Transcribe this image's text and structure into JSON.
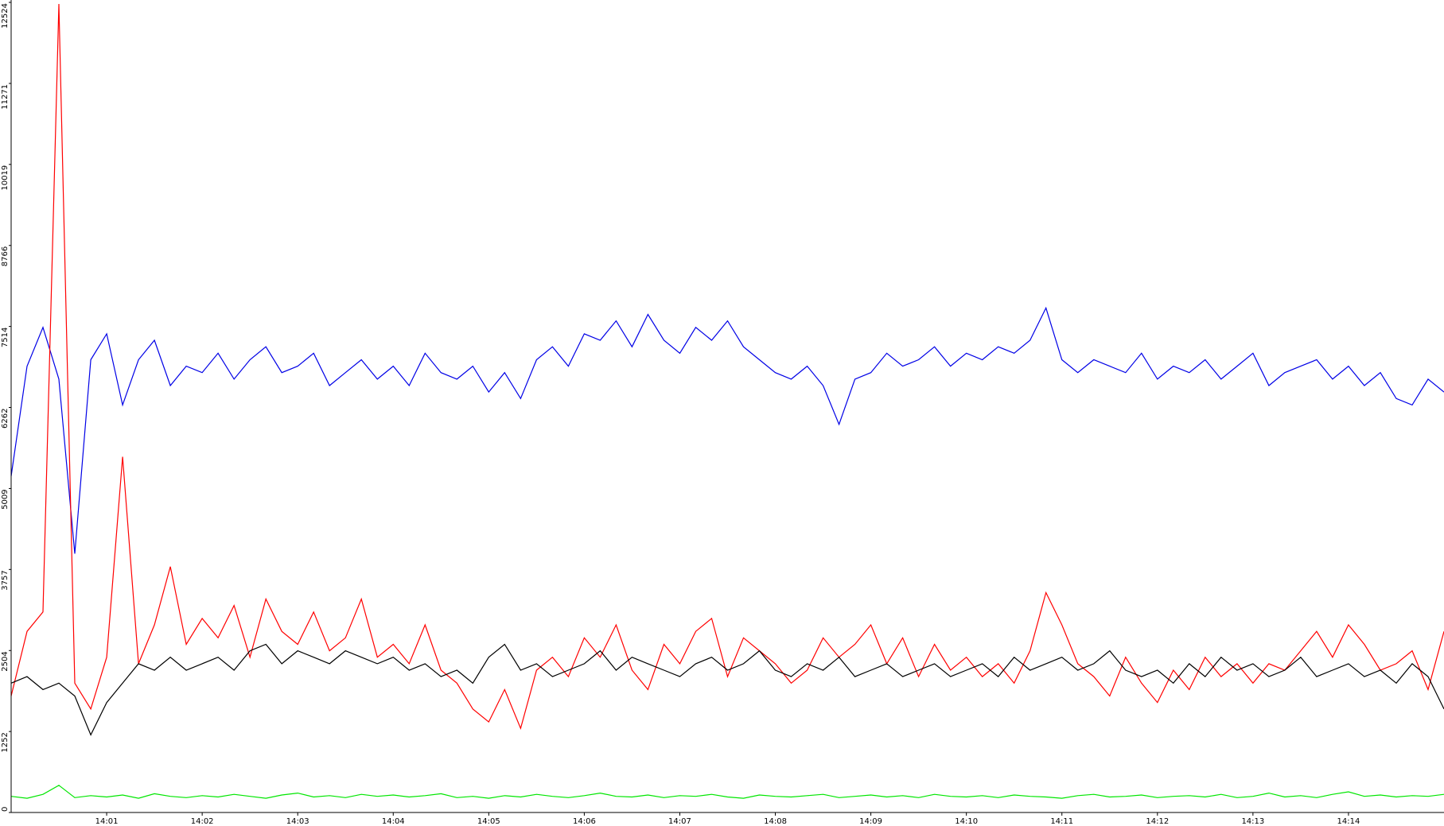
{
  "chart_data": {
    "type": "line",
    "x": [
      "14:00:00",
      "14:00:10",
      "14:00:20",
      "14:00:30",
      "14:00:40",
      "14:00:50",
      "14:01:00",
      "14:01:10",
      "14:01:20",
      "14:01:30",
      "14:01:40",
      "14:01:50",
      "14:02:00",
      "14:02:10",
      "14:02:20",
      "14:02:30",
      "14:02:40",
      "14:02:50",
      "14:03:00",
      "14:03:10",
      "14:03:20",
      "14:03:30",
      "14:03:40",
      "14:03:50",
      "14:04:00",
      "14:04:10",
      "14:04:20",
      "14:04:30",
      "14:04:40",
      "14:04:50",
      "14:05:00",
      "14:05:10",
      "14:05:20",
      "14:05:30",
      "14:05:40",
      "14:05:50",
      "14:06:00",
      "14:06:10",
      "14:06:20",
      "14:06:30",
      "14:06:40",
      "14:06:50",
      "14:07:00",
      "14:07:10",
      "14:07:20",
      "14:07:30",
      "14:07:40",
      "14:07:50",
      "14:08:00",
      "14:08:10",
      "14:08:20",
      "14:08:30",
      "14:08:40",
      "14:08:50",
      "14:09:00",
      "14:09:10",
      "14:09:20",
      "14:09:30",
      "14:09:40",
      "14:09:50",
      "14:10:00",
      "14:10:10",
      "14:10:20",
      "14:10:30",
      "14:10:40",
      "14:10:50",
      "14:11:00",
      "14:11:10",
      "14:11:20",
      "14:11:30",
      "14:11:40",
      "14:11:50",
      "14:12:00",
      "14:12:10",
      "14:12:20",
      "14:12:30",
      "14:12:40",
      "14:12:50",
      "14:13:00",
      "14:13:10",
      "14:13:20",
      "14:13:30",
      "14:13:40",
      "14:13:50",
      "14:14:00",
      "14:14:10",
      "14:14:20",
      "14:14:30",
      "14:14:40",
      "14:14:50",
      "14:15:00"
    ],
    "series": [
      {
        "color": "#0000e6",
        "values": [
          5200,
          6900,
          7500,
          6700,
          4000,
          7000,
          7400,
          6300,
          7000,
          7300,
          6600,
          6900,
          6800,
          7100,
          6700,
          7000,
          7200,
          6800,
          6900,
          7100,
          6600,
          6800,
          7000,
          6700,
          6900,
          6600,
          7100,
          6800,
          6700,
          6900,
          6500,
          6800,
          6400,
          7000,
          7200,
          6900,
          7400,
          7300,
          7600,
          7200,
          7700,
          7300,
          7100,
          7500,
          7300,
          7600,
          7200,
          7000,
          6800,
          6700,
          6900,
          6600,
          6000,
          6700,
          6800,
          7100,
          6900,
          7000,
          7200,
          6900,
          7100,
          7000,
          7200,
          7100,
          7300,
          7800,
          7000,
          6800,
          7000,
          6900,
          6800,
          7100,
          6700,
          6900,
          6800,
          7000,
          6700,
          6900,
          7100,
          6600,
          6800,
          6900,
          7000,
          6700,
          6900,
          6600,
          6800,
          6400,
          6300,
          6700,
          6500
        ]
      },
      {
        "color": "#ff0000",
        "values": [
          1800,
          2800,
          3100,
          12500,
          2000,
          1600,
          2400,
          5500,
          2300,
          2900,
          3800,
          2600,
          3000,
          2700,
          3200,
          2400,
          3300,
          2800,
          2600,
          3100,
          2500,
          2700,
          3300,
          2400,
          2600,
          2300,
          2900,
          2200,
          2000,
          1600,
          1400,
          1900,
          1300,
          2200,
          2400,
          2100,
          2700,
          2400,
          2900,
          2200,
          1900,
          2600,
          2300,
          2800,
          3000,
          2100,
          2700,
          2500,
          2300,
          2000,
          2200,
          2700,
          2400,
          2600,
          2900,
          2300,
          2700,
          2100,
          2600,
          2200,
          2400,
          2100,
          2300,
          2000,
          2500,
          3400,
          2900,
          2300,
          2100,
          1800,
          2400,
          2000,
          1700,
          2200,
          1900,
          2400,
          2100,
          2300,
          2000,
          2300,
          2200,
          2500,
          2800,
          2400,
          2900,
          2600,
          2200,
          2300,
          2500,
          1900,
          2800
        ]
      },
      {
        "color": "#000000",
        "values": [
          2000,
          2100,
          1900,
          2000,
          1800,
          1200,
          1700,
          2000,
          2300,
          2200,
          2400,
          2200,
          2300,
          2400,
          2200,
          2500,
          2600,
          2300,
          2500,
          2400,
          2300,
          2500,
          2400,
          2300,
          2400,
          2200,
          2300,
          2100,
          2200,
          2000,
          2400,
          2600,
          2200,
          2300,
          2100,
          2200,
          2300,
          2500,
          2200,
          2400,
          2300,
          2200,
          2100,
          2300,
          2400,
          2200,
          2300,
          2500,
          2200,
          2100,
          2300,
          2200,
          2400,
          2100,
          2200,
          2300,
          2100,
          2200,
          2300,
          2100,
          2200,
          2300,
          2100,
          2400,
          2200,
          2300,
          2400,
          2200,
          2300,
          2500,
          2200,
          2100,
          2200,
          2000,
          2300,
          2100,
          2400,
          2200,
          2300,
          2100,
          2200,
          2400,
          2100,
          2200,
          2300,
          2100,
          2200,
          2000,
          2300,
          2100,
          1600
        ]
      },
      {
        "color": "#00e600",
        "values": [
          250,
          220,
          280,
          420,
          230,
          260,
          240,
          270,
          220,
          290,
          250,
          230,
          260,
          240,
          280,
          250,
          220,
          270,
          300,
          240,
          260,
          230,
          280,
          250,
          270,
          240,
          260,
          290,
          230,
          250,
          220,
          260,
          240,
          280,
          250,
          230,
          260,
          300,
          250,
          240,
          270,
          230,
          260,
          250,
          280,
          240,
          220,
          270,
          250,
          240,
          260,
          280,
          230,
          250,
          270,
          240,
          260,
          230,
          280,
          250,
          240,
          260,
          230,
          270,
          250,
          240,
          220,
          260,
          280,
          240,
          250,
          270,
          230,
          250,
          260,
          240,
          280,
          230,
          250,
          300,
          240,
          260,
          230,
          280,
          320,
          250,
          270,
          240,
          260,
          250,
          280
        ]
      }
    ],
    "xlim": [
      "14:00",
      "14:15"
    ],
    "xticks": [
      "14:01",
      "14:02",
      "14:03",
      "14:04",
      "14:05",
      "14:06",
      "14:07",
      "14:08",
      "14:09",
      "14:10",
      "14:11",
      "14:12",
      "14:13",
      "14:14"
    ],
    "ylim": [
      0,
      12524
    ],
    "yticks": [
      0,
      1252,
      2504,
      3757,
      5009,
      6262,
      7514,
      8766,
      10019,
      11271,
      12524
    ]
  }
}
